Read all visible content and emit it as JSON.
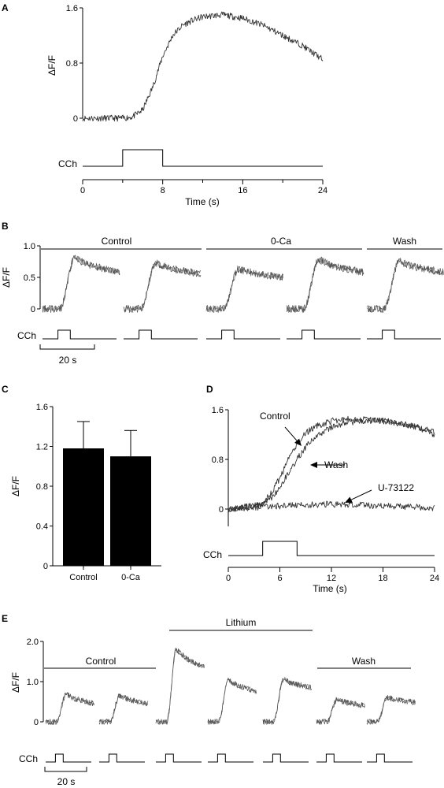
{
  "panels": {
    "a": "A",
    "b": "B",
    "c": "C",
    "d": "D",
    "e": "E"
  },
  "stim_label": "CCh",
  "scale_bar_label": "20 s",
  "chart_data": [
    {
      "id": "A",
      "type": "line",
      "xlabel": "Time (s)",
      "ylabel": "ΔF/F",
      "xlim": [
        0,
        24
      ],
      "ylim": [
        0,
        1.6
      ],
      "xticks": [
        "0",
        "8",
        "16",
        "24"
      ],
      "xtick_minor": [
        "4",
        "12",
        "20"
      ],
      "yticks": [
        "0",
        "0.8",
        "1.6"
      ],
      "series": [
        {
          "x": [
            0,
            2,
            4,
            5,
            6,
            7,
            8,
            9,
            10,
            11,
            12,
            14,
            16,
            18,
            20,
            22,
            24
          ],
          "y": [
            0.0,
            0.0,
            0.0,
            0.02,
            0.12,
            0.45,
            0.9,
            1.2,
            1.35,
            1.42,
            1.47,
            1.5,
            1.45,
            1.35,
            1.2,
            1.05,
            0.85
          ]
        }
      ],
      "stimulus": {
        "label": "CCh",
        "on": 4,
        "off": 8
      }
    },
    {
      "id": "B",
      "type": "line",
      "ylabel": "ΔF/F",
      "ylim": [
        0,
        1.0
      ],
      "yticks": [
        "0",
        "0.5",
        "1.0"
      ],
      "conditions": [
        {
          "label": "Control",
          "traces": [
            0,
            1
          ]
        },
        {
          "label": "0-Ca",
          "traces": [
            2,
            3
          ]
        },
        {
          "label": "Wash",
          "traces": [
            4
          ]
        }
      ],
      "traces": [
        {
          "baseline": 0.0,
          "peak": 0.8,
          "plateau": 0.58
        },
        {
          "baseline": 0.0,
          "peak": 0.73,
          "plateau": 0.55
        },
        {
          "baseline": 0.0,
          "peak": 0.63,
          "plateau": 0.5
        },
        {
          "baseline": 0.0,
          "peak": 0.78,
          "plateau": 0.58
        },
        {
          "baseline": 0.0,
          "peak": 0.75,
          "plateau": 0.58
        }
      ],
      "scale_bar": "20 s",
      "stimulus": {
        "label": "CCh"
      }
    },
    {
      "id": "C",
      "type": "bar",
      "ylabel": "ΔF/F",
      "ylim": [
        0,
        1.6
      ],
      "yticks": [
        "0",
        "0.4",
        "0.8",
        "1.2",
        "1.6"
      ],
      "categories": [
        "Control",
        "0-Ca"
      ],
      "values": [
        1.18,
        1.1
      ],
      "errors": [
        0.27,
        0.26
      ]
    },
    {
      "id": "D",
      "type": "line",
      "xlabel": "Time (s)",
      "xlim": [
        0,
        24
      ],
      "ylim": [
        0,
        1.6
      ],
      "xticks": [
        "0",
        "6",
        "12",
        "18",
        "24"
      ],
      "yticks": [
        "0",
        "0.8",
        "1.6"
      ],
      "series": [
        {
          "name": "Control",
          "x": [
            0,
            3,
            4,
            5,
            6,
            7,
            8,
            9,
            10,
            12,
            14,
            16,
            18,
            20,
            22,
            24
          ],
          "y": [
            0.0,
            0.05,
            0.1,
            0.25,
            0.5,
            0.8,
            1.05,
            1.22,
            1.32,
            1.42,
            1.45,
            1.45,
            1.42,
            1.38,
            1.32,
            1.2
          ]
        },
        {
          "name": "Wash",
          "x": [
            0,
            3,
            4,
            5,
            6,
            7,
            8,
            9,
            10,
            12,
            14,
            16,
            18,
            20,
            22,
            24
          ],
          "y": [
            0.0,
            0.05,
            0.08,
            0.18,
            0.35,
            0.58,
            0.8,
            1.0,
            1.15,
            1.32,
            1.4,
            1.42,
            1.42,
            1.38,
            1.32,
            1.25
          ]
        },
        {
          "name": "U-73122",
          "x": [
            0,
            6,
            12,
            18,
            24
          ],
          "y": [
            0.0,
            0.05,
            0.08,
            0.05,
            0.02
          ]
        }
      ],
      "stimulus": {
        "label": "CCh",
        "on": 4,
        "off": 8
      }
    },
    {
      "id": "E",
      "type": "line",
      "ylabel": "ΔF/F",
      "ylim": [
        0,
        2.0
      ],
      "yticks": [
        "0",
        "1.0",
        "2.0"
      ],
      "conditions": [
        {
          "label": "Control",
          "traces": [
            0,
            1
          ]
        },
        {
          "label": "Lithium",
          "traces": [
            2,
            3,
            4
          ]
        },
        {
          "label": "Wash",
          "traces": [
            5,
            6
          ]
        }
      ],
      "traces": [
        {
          "baseline": 0.0,
          "peak": 0.68,
          "plateau": 0.45
        },
        {
          "baseline": 0.0,
          "peak": 0.65,
          "plateau": 0.45
        },
        {
          "baseline": 0.0,
          "peak": 1.8,
          "plateau": 1.35
        },
        {
          "baseline": 0.0,
          "peak": 1.05,
          "plateau": 0.75
        },
        {
          "baseline": 0.0,
          "peak": 1.05,
          "plateau": 0.85
        },
        {
          "baseline": 0.0,
          "peak": 0.55,
          "plateau": 0.4
        },
        {
          "baseline": 0.0,
          "peak": 0.6,
          "plateau": 0.48
        }
      ],
      "scale_bar": "20 s",
      "stimulus": {
        "label": "CCh"
      }
    }
  ]
}
